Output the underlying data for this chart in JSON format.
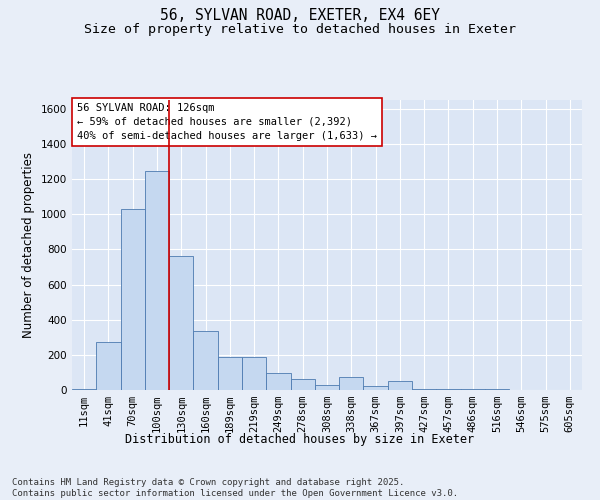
{
  "title_line1": "56, SYLVAN ROAD, EXETER, EX4 6EY",
  "title_line2": "Size of property relative to detached houses in Exeter",
  "xlabel": "Distribution of detached houses by size in Exeter",
  "ylabel": "Number of detached properties",
  "categories": [
    "11sqm",
    "41sqm",
    "70sqm",
    "100sqm",
    "130sqm",
    "160sqm",
    "189sqm",
    "219sqm",
    "249sqm",
    "278sqm",
    "308sqm",
    "338sqm",
    "367sqm",
    "397sqm",
    "427sqm",
    "457sqm",
    "486sqm",
    "516sqm",
    "546sqm",
    "575sqm",
    "605sqm"
  ],
  "values": [
    5,
    275,
    1030,
    1245,
    760,
    335,
    190,
    190,
    95,
    60,
    30,
    75,
    20,
    50,
    5,
    5,
    5,
    5,
    0,
    0,
    0
  ],
  "bar_color": "#c5d8f0",
  "bar_edge_color": "#4c7ab0",
  "annotation_box_text": "56 SYLVAN ROAD: 126sqm\n← 59% of detached houses are smaller (2,392)\n40% of semi-detached houses are larger (1,633) →",
  "annotation_box_color": "#cc0000",
  "vline_x": 3.5,
  "vline_color": "#cc0000",
  "ylim": [
    0,
    1650
  ],
  "yticks": [
    0,
    200,
    400,
    600,
    800,
    1000,
    1200,
    1400,
    1600
  ],
  "background_color": "#dce6f5",
  "grid_color": "#ffffff",
  "fig_background": "#e8eef8",
  "footnote": "Contains HM Land Registry data © Crown copyright and database right 2025.\nContains public sector information licensed under the Open Government Licence v3.0.",
  "title_fontsize": 10.5,
  "subtitle_fontsize": 9.5,
  "label_fontsize": 8.5,
  "tick_fontsize": 7.5,
  "annotation_fontsize": 7.5,
  "footnote_fontsize": 6.5
}
